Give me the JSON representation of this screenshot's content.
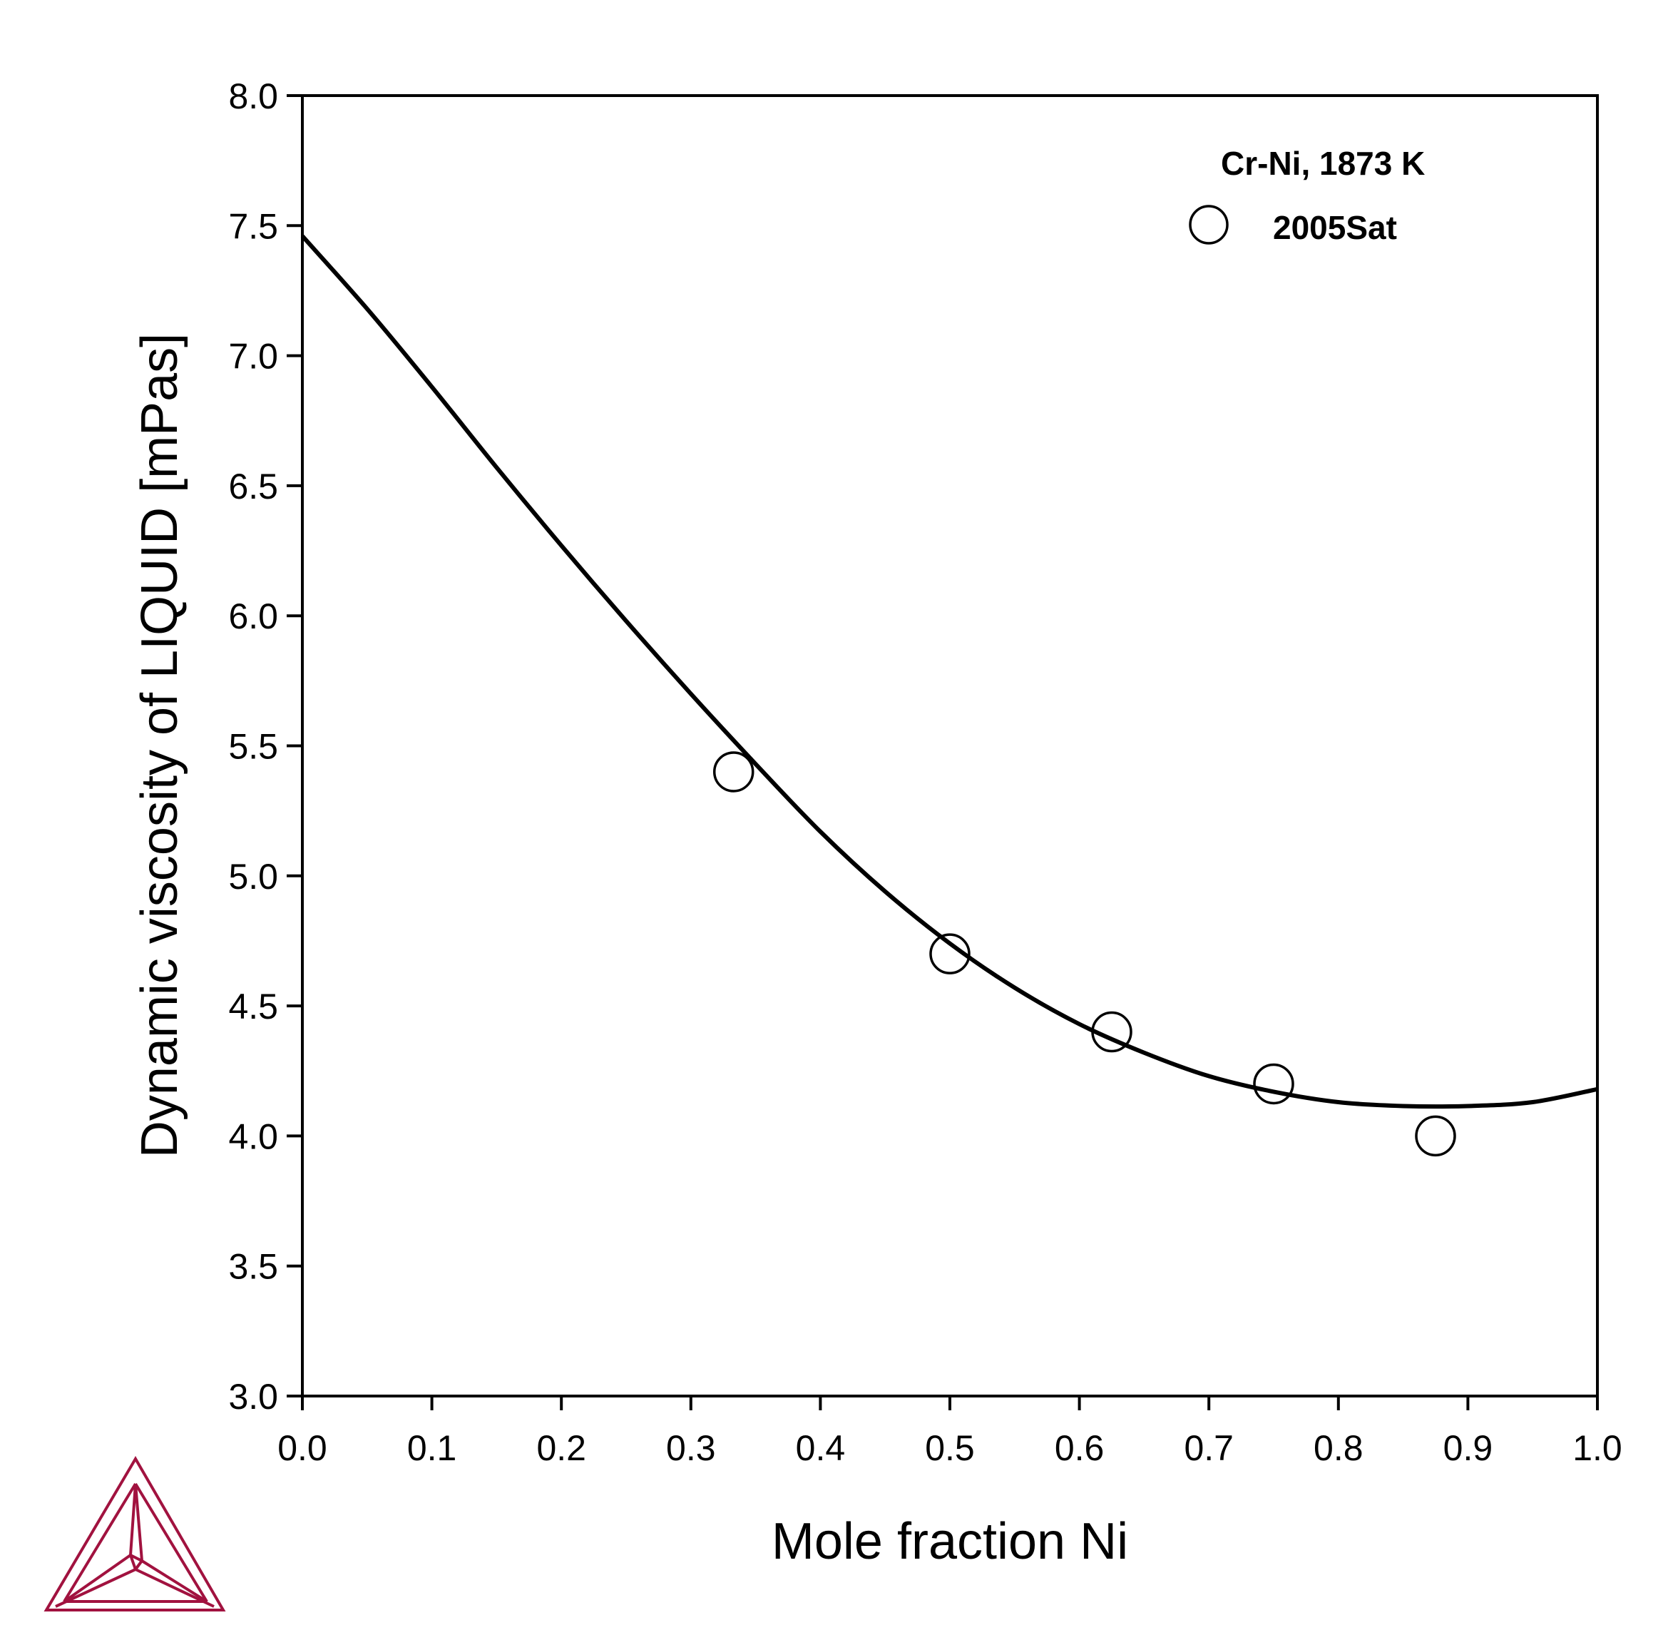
{
  "chart_data": {
    "type": "scatter",
    "xlabel": "Mole fraction Ni",
    "ylabel": "Dynamic viscosity of LIQUID [mPas]",
    "xlim": [
      0.0,
      1.0
    ],
    "ylim": [
      3.0,
      8.0
    ],
    "xticks": [
      "0.0",
      "0.1",
      "0.2",
      "0.3",
      "0.4",
      "0.5",
      "0.6",
      "0.7",
      "0.8",
      "0.9",
      "1.0"
    ],
    "yticks": [
      "3.0",
      "3.5",
      "4.0",
      "4.5",
      "5.0",
      "5.5",
      "6.0",
      "6.5",
      "7.0",
      "7.5",
      "8.0"
    ],
    "grid": false,
    "legend": {
      "title": "Cr-Ni, 1873 K",
      "placement": "top-right",
      "entries": [
        "2005Sat"
      ]
    },
    "series": [
      {
        "kind": "line",
        "x": [
          0.0,
          0.05,
          0.1,
          0.15,
          0.2,
          0.25,
          0.3,
          0.35,
          0.4,
          0.45,
          0.5,
          0.55,
          0.6,
          0.65,
          0.7,
          0.75,
          0.8,
          0.85,
          0.9,
          0.95,
          1.0
        ],
        "y": [
          7.46,
          7.18,
          6.88,
          6.57,
          6.27,
          5.98,
          5.7,
          5.43,
          5.17,
          4.94,
          4.74,
          4.57,
          4.43,
          4.32,
          4.23,
          4.17,
          4.13,
          4.115,
          4.115,
          4.13,
          4.18
        ]
      },
      {
        "name": "2005Sat",
        "kind": "scatter",
        "marker": "open-circle",
        "x": [
          0.333,
          0.5,
          0.625,
          0.75,
          0.875
        ],
        "y": [
          5.4,
          4.7,
          4.4,
          4.2,
          4.0
        ]
      }
    ]
  },
  "colors": {
    "line": "#000000",
    "logo": "#a1123f"
  },
  "logo": {
    "icon": "thermo-calc-triangle-logo"
  }
}
